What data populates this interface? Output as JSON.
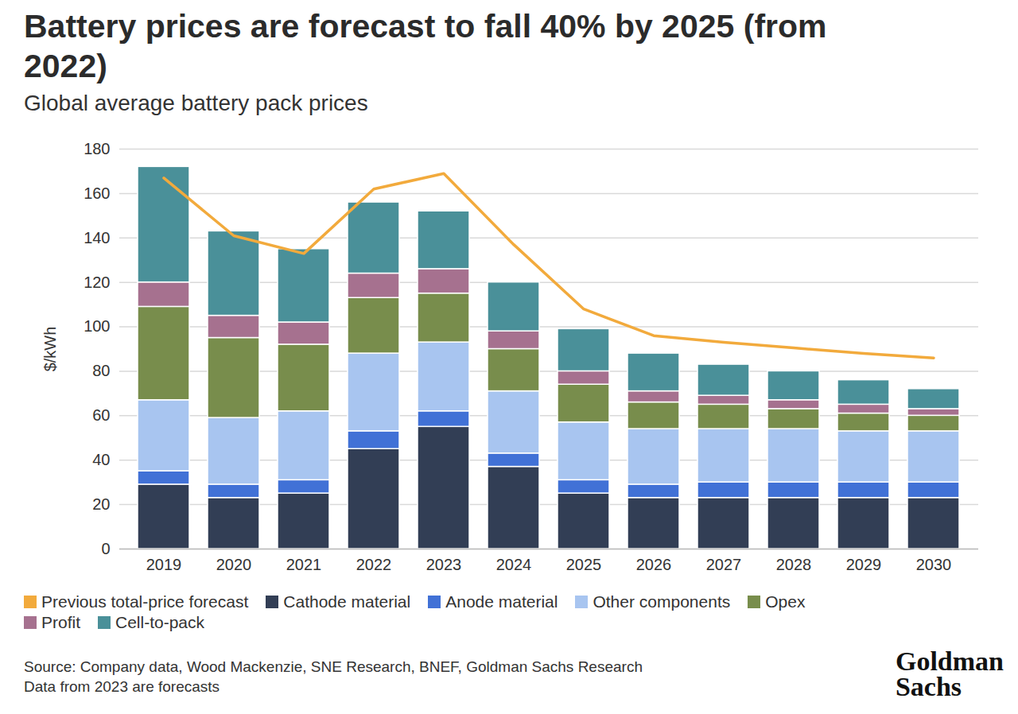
{
  "chart_data": {
    "type": "bar",
    "title": "Battery prices are forecast to fall 40% by 2025 (from 2022)",
    "subtitle": "Global average battery pack prices",
    "ylabel": "$/kWh",
    "categories": [
      "2019",
      "2020",
      "2021",
      "2022",
      "2023",
      "2024",
      "2025",
      "2026",
      "2027",
      "2028",
      "2029",
      "2030"
    ],
    "stacked": true,
    "grid": true,
    "legend": "bottom",
    "ylim": [
      0,
      180
    ],
    "yticks": [
      0,
      20,
      40,
      60,
      80,
      100,
      120,
      140,
      160,
      180
    ],
    "series": [
      {
        "name": "Previous total-price forecast",
        "type": "line",
        "color": "#f2aa3c",
        "values": [
          167,
          141,
          133,
          162,
          169,
          137,
          108,
          96,
          93,
          90.5,
          88,
          86
        ]
      },
      {
        "name": "Cathode material",
        "type": "bar",
        "color": "#323e55",
        "values": [
          29,
          23,
          25,
          45,
          55,
          37,
          25,
          23,
          23,
          23,
          23,
          23
        ]
      },
      {
        "name": "Anode material",
        "type": "bar",
        "color": "#4171d6",
        "values": [
          6,
          6,
          6,
          8,
          7,
          6,
          6,
          6,
          7,
          7,
          7,
          7
        ]
      },
      {
        "name": "Other components",
        "type": "bar",
        "color": "#a8c5f0",
        "values": [
          32,
          30,
          31,
          35,
          31,
          28,
          26,
          25,
          24,
          24,
          23,
          23
        ]
      },
      {
        "name": "Opex",
        "type": "bar",
        "color": "#788d4c",
        "values": [
          42,
          36,
          30,
          25,
          22,
          19,
          17,
          12,
          11,
          9,
          8,
          7
        ]
      },
      {
        "name": "Profit",
        "type": "bar",
        "color": "#a6718f",
        "values": [
          11,
          10,
          10,
          11,
          11,
          8,
          6,
          5,
          4,
          4,
          4,
          3
        ]
      },
      {
        "name": "Cell-to-pack",
        "type": "bar",
        "color": "#4a9099",
        "values": [
          52,
          38,
          33,
          32,
          26,
          22,
          19,
          17,
          14,
          13,
          11,
          9
        ]
      }
    ],
    "source": [
      "Source: Company data, Wood Mackenzie, SNE Research, BNEF, Goldman Sachs Research",
      "Data from 2023 are forecasts"
    ],
    "logo": [
      "Goldman",
      "Sachs"
    ]
  }
}
